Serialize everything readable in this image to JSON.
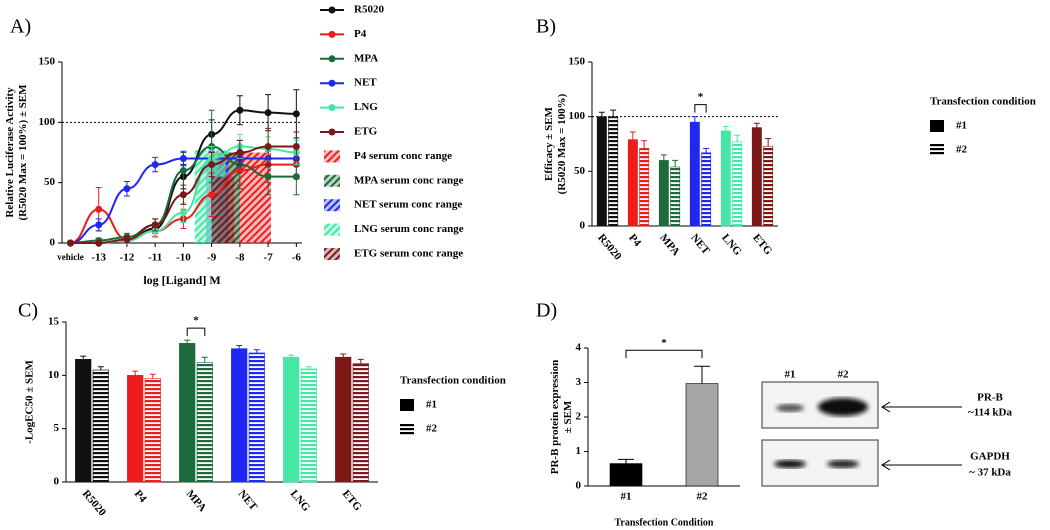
{
  "chart_data": [
    {
      "type": "line",
      "panel": "A)",
      "xlabel": "log [Ligand] M",
      "ylabel": [
        "Relative Luciferase Activity",
        "(R5020 Max = 100%) ± SEM"
      ],
      "x": [
        -14,
        -13,
        -12,
        -11,
        -10,
        -9,
        -8,
        -7,
        -6
      ],
      "xlim": [
        -14.3,
        -5.8
      ],
      "xticks": [
        {
          "value": -14,
          "label": "vehicle"
        },
        -13,
        -12,
        -11,
        -10,
        -9,
        -8,
        -7,
        -6
      ],
      "ylim": [
        0,
        150
      ],
      "yticks": [
        0,
        50,
        100,
        150
      ],
      "reference_line": 100,
      "series": [
        {
          "name": "R5020",
          "color": "#111111",
          "values": [
            0,
            0,
            2,
            12,
            55,
            90,
            110,
            108,
            107
          ],
          "errors": [
            0,
            0,
            2,
            4,
            10,
            12,
            12,
            15,
            20
          ]
        },
        {
          "name": "P4",
          "color": "#ee1c1c",
          "values": [
            0,
            28,
            3,
            10,
            20,
            40,
            60,
            65,
            65
          ],
          "errors": [
            0,
            18,
            3,
            5,
            8,
            18,
            12,
            15,
            12
          ]
        },
        {
          "name": "MPA",
          "color": "#1d6a3c",
          "values": [
            0,
            2,
            5,
            15,
            60,
            80,
            65,
            55,
            55
          ],
          "errors": [
            0,
            2,
            3,
            5,
            15,
            30,
            20,
            15,
            15
          ]
        },
        {
          "name": "NET",
          "color": "#1f27f0",
          "values": [
            0,
            15,
            45,
            65,
            70,
            70,
            70,
            70,
            70
          ],
          "errors": [
            0,
            5,
            6,
            6,
            6,
            6,
            6,
            6,
            6
          ]
        },
        {
          "name": "LNG",
          "color": "#44e8a4",
          "values": [
            0,
            0,
            2,
            10,
            25,
            70,
            80,
            78,
            75
          ],
          "errors": [
            0,
            0,
            2,
            4,
            8,
            10,
            10,
            10,
            10
          ]
        },
        {
          "name": "ETG",
          "color": "#7b1818",
          "values": [
            0,
            0,
            3,
            15,
            40,
            65,
            75,
            80,
            80
          ],
          "errors": [
            0,
            0,
            3,
            5,
            8,
            10,
            10,
            15,
            12
          ]
        }
      ],
      "ranges": [
        {
          "name": "P4 serum conc range",
          "color": "#ee1c1c",
          "x": [
            -8.8,
            -6.9
          ],
          "value": 75
        },
        {
          "name": "MPA serum conc range",
          "color": "#1d6a3c",
          "x": [
            -9.0,
            -8.0
          ],
          "value": 75
        },
        {
          "name": "NET serum conc range",
          "color": "#1f27f0",
          "x": [
            -9.2,
            -8.4
          ],
          "value": 70
        },
        {
          "name": "LNG serum conc range",
          "color": "#44e8a4",
          "x": [
            -9.6,
            -8.5
          ],
          "value": 77
        },
        {
          "name": "ETG serum conc range",
          "color": "#7b1818",
          "x": [
            -9.0,
            -8.2
          ],
          "value": 55
        }
      ]
    },
    {
      "type": "grouped_bar",
      "panel": "B)",
      "ylabel": [
        "Efficacy ± SEM",
        "(R5020 Max = 100%)"
      ],
      "categories": [
        "R5020",
        "P4",
        "MPA",
        "NET",
        "LNG",
        "ETG"
      ],
      "category_colors": [
        "#111111",
        "#ee1c1c",
        "#1d6a3c",
        "#1f27f0",
        "#44e8a4",
        "#7b1818"
      ],
      "series": [
        {
          "name": "#1",
          "pattern": "solid",
          "values": [
            100,
            79,
            60,
            95,
            87,
            90
          ],
          "errors": [
            4,
            7,
            5,
            5,
            4,
            4
          ]
        },
        {
          "name": "#2",
          "pattern": "stripes",
          "values": [
            100,
            71,
            54,
            67,
            77,
            73
          ],
          "errors": [
            6,
            7,
            6,
            4,
            6,
            7
          ]
        }
      ],
      "ylim": [
        0,
        150
      ],
      "yticks": [
        0,
        50,
        100,
        150
      ],
      "reference_line": 100,
      "legend_title": "Transfection condition",
      "significance": {
        "label": "*",
        "category": "NET"
      }
    },
    {
      "type": "grouped_bar",
      "panel": "C)",
      "ylabel": [
        "-LogEC50 ± SEM"
      ],
      "categories": [
        "R5020",
        "P4",
        "MPA",
        "NET",
        "LNG",
        "ETG"
      ],
      "category_colors": [
        "#111111",
        "#ee1c1c",
        "#1d6a3c",
        "#1f27f0",
        "#44e8a4",
        "#7b1818"
      ],
      "series": [
        {
          "name": "#1",
          "pattern": "solid",
          "values": [
            11.5,
            10.0,
            13.0,
            12.5,
            11.7,
            11.7
          ],
          "errors": [
            0.3,
            0.4,
            0.3,
            0.3,
            0.2,
            0.3
          ]
        },
        {
          "name": "#2",
          "pattern": "stripes",
          "values": [
            10.5,
            9.7,
            11.2,
            12.1,
            10.6,
            11.1
          ],
          "errors": [
            0.3,
            0.4,
            0.5,
            0.3,
            0.2,
            0.4
          ]
        }
      ],
      "ylim": [
        0,
        15
      ],
      "yticks": [
        0,
        5,
        10,
        15
      ],
      "legend_title": "Transfection condition",
      "significance": {
        "label": "*",
        "category": "MPA"
      }
    },
    {
      "type": "bar",
      "panel": "D)",
      "ylabel": [
        "PR-B protein expression",
        "± SEM"
      ],
      "xlabel": "Transfection Condition",
      "categories": [
        "#1",
        "#2"
      ],
      "values": [
        0.65,
        2.97
      ],
      "errors": [
        0.12,
        0.5
      ],
      "colors": [
        "#000000",
        "#a6a6a6"
      ],
      "ylim": [
        0,
        4
      ],
      "yticks": [
        0,
        1,
        2,
        3,
        4
      ],
      "significance": {
        "label": "*"
      },
      "blot": {
        "lanes": [
          "#1",
          "#2"
        ],
        "bands": [
          {
            "label": "PR-B",
            "size": "~114 kDa"
          },
          {
            "label": "GAPDH",
            "size": "~ 37 kDa"
          }
        ]
      }
    }
  ]
}
